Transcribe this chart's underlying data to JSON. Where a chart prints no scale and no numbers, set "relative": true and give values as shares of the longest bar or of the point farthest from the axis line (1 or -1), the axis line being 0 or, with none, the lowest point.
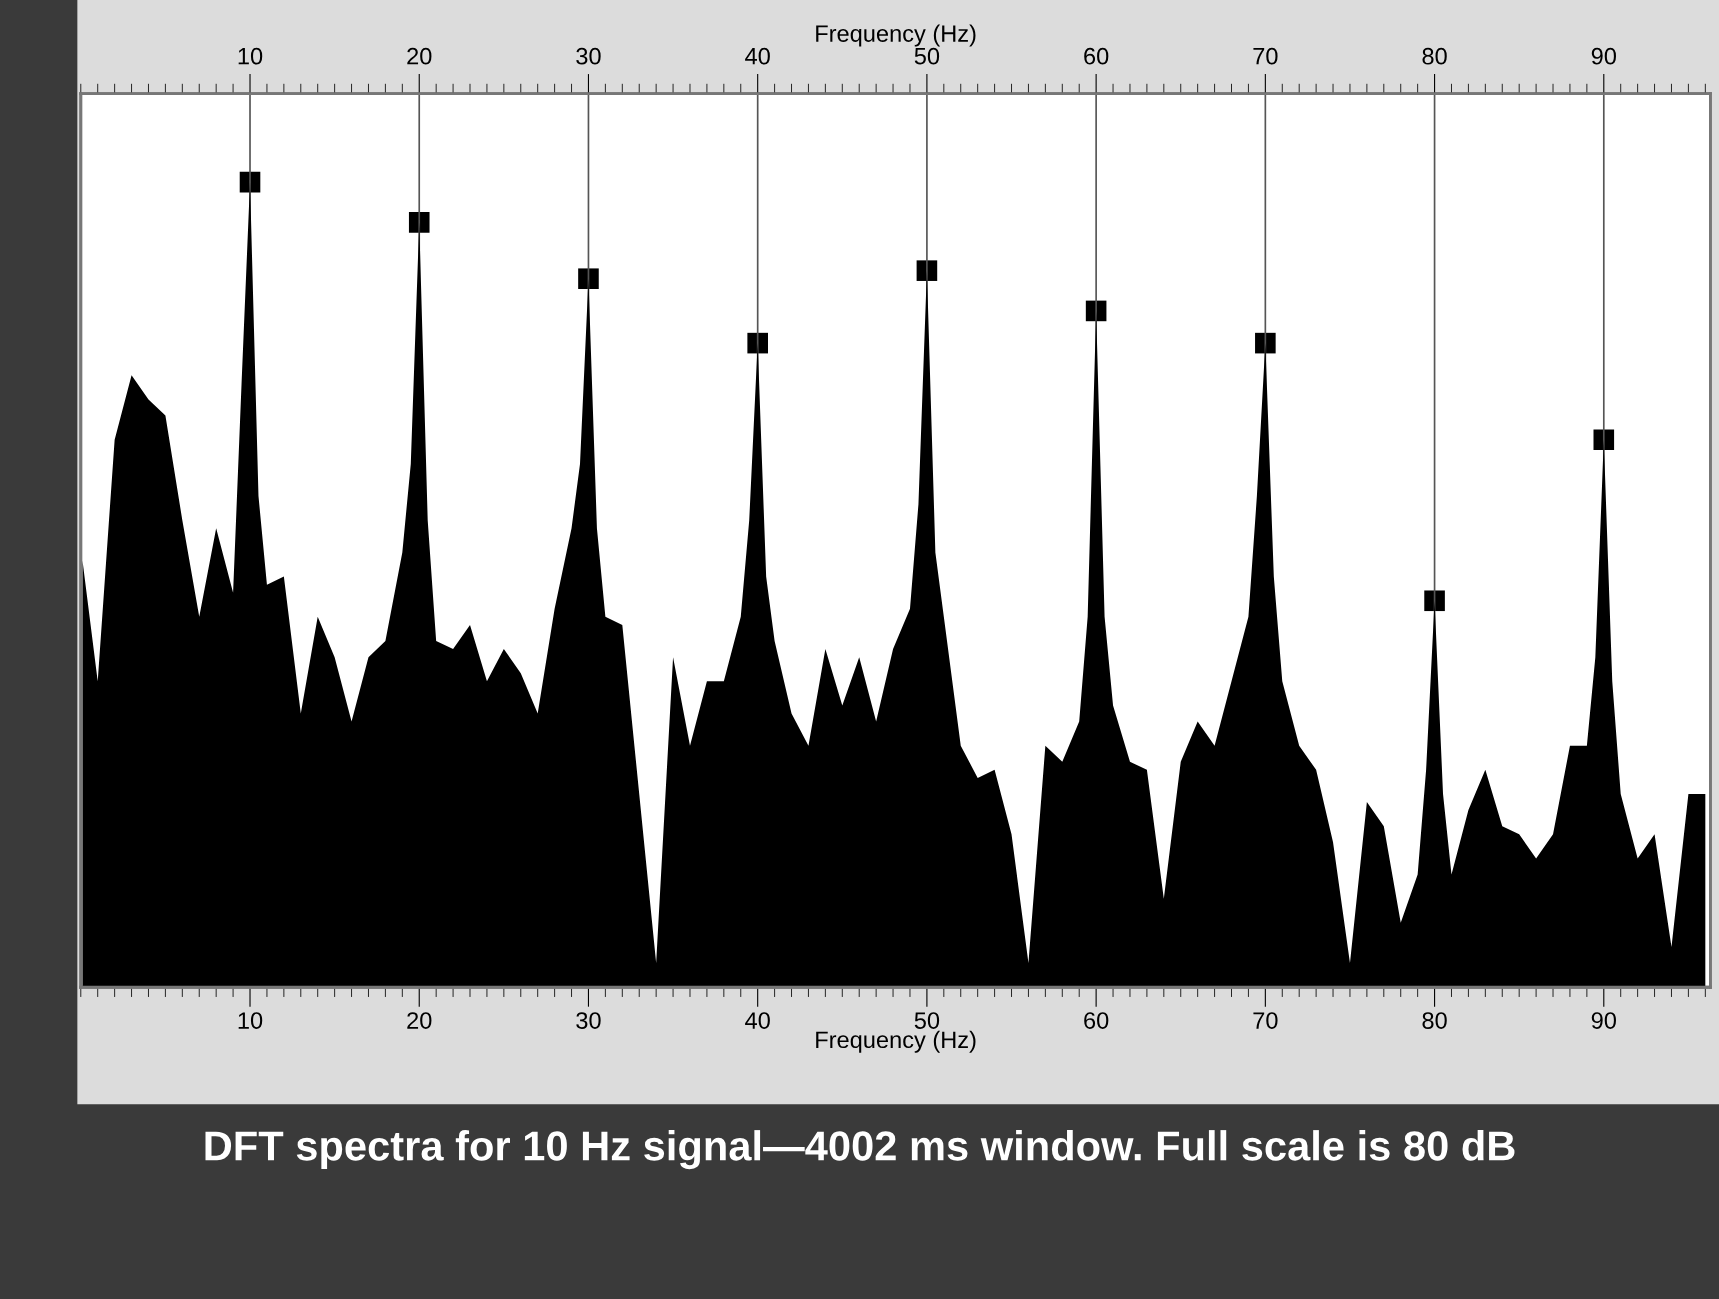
{
  "chart_data": {
    "type": "area",
    "relative": true,
    "title": "DFT spectra for 10 Hz signal—4002 ms window. Full scale is 80 dB",
    "xlabel": "Frequency (Hz)",
    "x2label": "Frequency (Hz)",
    "xlim": [
      0,
      96.3
    ],
    "xticks": [
      10,
      20,
      30,
      40,
      50,
      60,
      70,
      80,
      90
    ],
    "x2lim": [
      0,
      96.3
    ],
    "x2ticks": [
      10,
      20,
      30,
      40,
      50,
      60,
      70,
      80,
      90
    ],
    "tick_labels": "x",
    "grid": false,
    "legend": false,
    "series": [
      {
        "color": "#000000",
        "x": [
          0.1,
          1,
          2,
          3,
          4,
          5,
          6,
          7,
          8,
          9,
          9.5,
          10,
          10.5,
          11,
          12,
          13,
          14,
          15,
          16,
          17,
          18,
          19,
          19.5,
          20,
          20.5,
          21,
          22,
          23,
          24,
          25,
          26,
          27,
          28,
          29,
          29.5,
          30,
          30.5,
          31,
          32,
          33,
          34,
          35,
          36,
          37,
          38,
          39,
          39.5,
          40,
          40.5,
          41,
          42,
          43,
          44,
          45,
          46,
          47,
          48,
          49,
          49.5,
          50,
          50.5,
          51,
          52,
          53,
          54,
          55,
          56,
          57,
          58,
          59,
          59.5,
          60,
          60.5,
          61,
          62,
          63,
          64,
          65,
          66,
          67,
          68,
          69,
          69.5,
          70,
          70.5,
          71,
          72,
          73,
          74,
          75,
          76,
          77,
          78,
          79,
          79.5,
          80,
          80.5,
          81,
          82,
          83,
          84,
          85,
          86,
          87,
          88,
          89,
          89.5,
          90,
          90.5,
          91,
          92,
          93,
          94,
          95,
          96
        ],
        "values": [
          0.53,
          0.38,
          0.68,
          0.76,
          0.73,
          0.71,
          0.58,
          0.46,
          0.57,
          0.49,
          0.75,
          1.0,
          0.61,
          0.5,
          0.51,
          0.34,
          0.46,
          0.41,
          0.33,
          0.41,
          0.43,
          0.54,
          0.65,
          0.95,
          0.58,
          0.43,
          0.42,
          0.45,
          0.38,
          0.42,
          0.39,
          0.34,
          0.47,
          0.57,
          0.65,
          0.88,
          0.57,
          0.46,
          0.45,
          0.24,
          0.03,
          0.41,
          0.3,
          0.38,
          0.38,
          0.46,
          0.58,
          0.8,
          0.51,
          0.43,
          0.34,
          0.3,
          0.42,
          0.35,
          0.41,
          0.33,
          0.42,
          0.47,
          0.6,
          0.89,
          0.54,
          0.46,
          0.3,
          0.26,
          0.27,
          0.19,
          0.03,
          0.3,
          0.28,
          0.33,
          0.46,
          0.84,
          0.46,
          0.35,
          0.28,
          0.27,
          0.11,
          0.28,
          0.33,
          0.3,
          0.38,
          0.46,
          0.61,
          0.8,
          0.51,
          0.38,
          0.3,
          0.27,
          0.18,
          0.03,
          0.23,
          0.2,
          0.08,
          0.14,
          0.27,
          0.48,
          0.24,
          0.14,
          0.22,
          0.27,
          0.2,
          0.19,
          0.16,
          0.19,
          0.3,
          0.3,
          0.41,
          0.68,
          0.38,
          0.24,
          0.16,
          0.19,
          0.05,
          0.24,
          0.24
        ]
      },
      {
        "type": "scatter",
        "color": "#000000",
        "marker": "square",
        "x": [
          10,
          20,
          30,
          40,
          50,
          60,
          70,
          80,
          90
        ],
        "values": [
          1.0,
          0.95,
          0.88,
          0.8,
          0.89,
          0.84,
          0.8,
          0.48,
          0.68
        ]
      }
    ],
    "ref_lines": [
      {
        "axis": "x",
        "value": 10,
        "color": "#555555"
      },
      {
        "axis": "x",
        "value": 20,
        "color": "#555555"
      },
      {
        "axis": "x",
        "value": 30,
        "color": "#555555"
      },
      {
        "axis": "x",
        "value": 40,
        "color": "#555555"
      },
      {
        "axis": "x",
        "value": 50,
        "color": "#555555"
      },
      {
        "axis": "x",
        "value": 60,
        "color": "#555555"
      },
      {
        "axis": "x",
        "value": 70,
        "color": "#555555"
      },
      {
        "axis": "x",
        "value": 80,
        "color": "#555555"
      },
      {
        "axis": "x",
        "value": 90,
        "color": "#555555"
      }
    ]
  }
}
